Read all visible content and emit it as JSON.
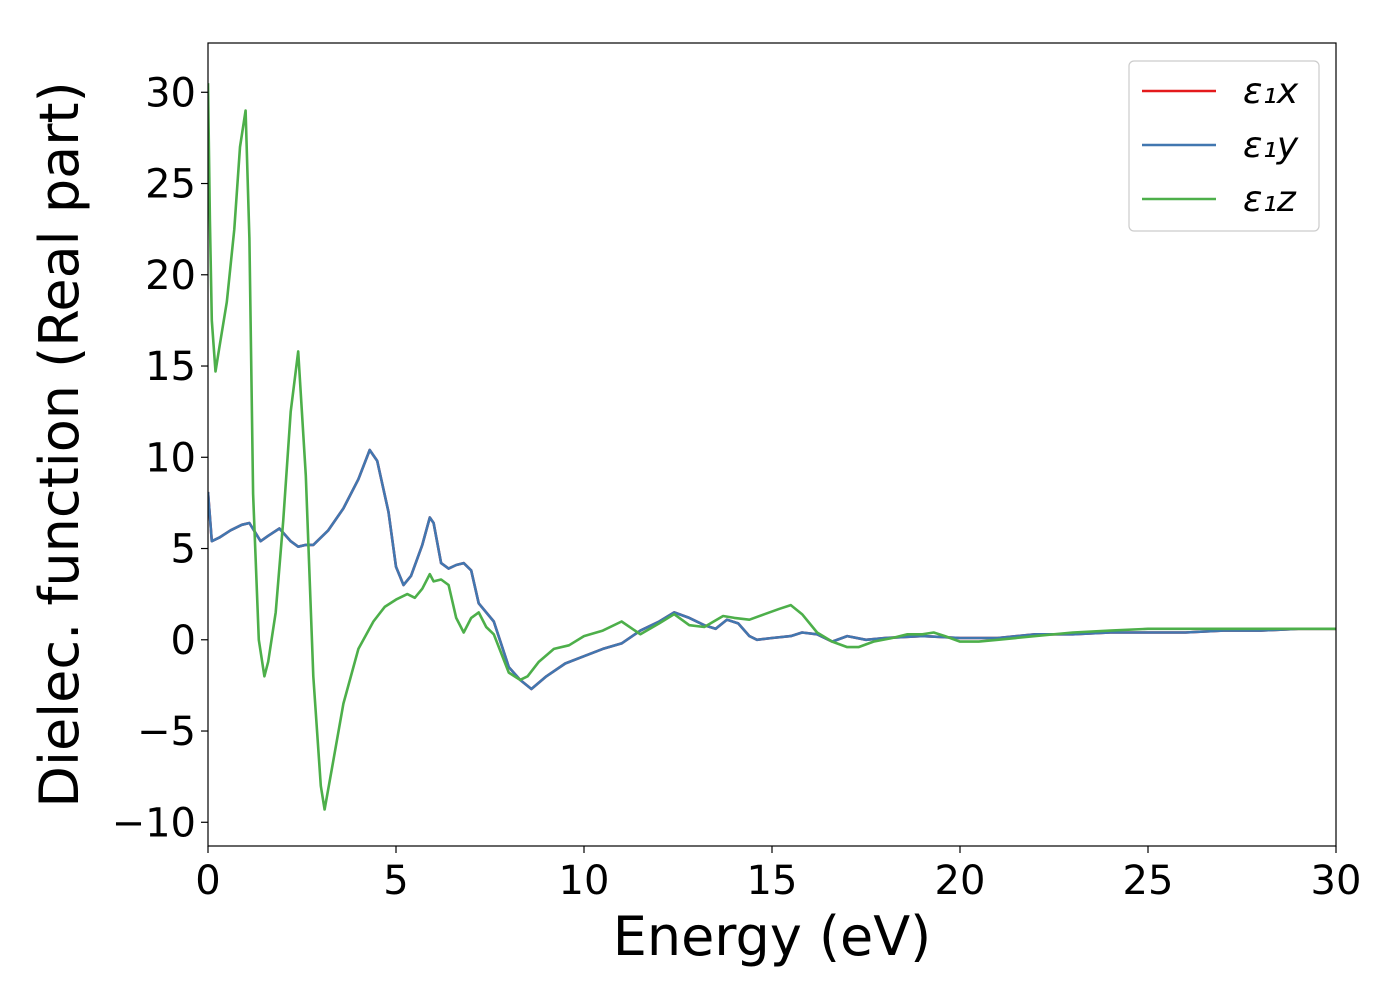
{
  "chart_data": {
    "type": "line",
    "title": "",
    "xlabel": "Energy (eV)",
    "ylabel": "Dielec. function (Real part)",
    "xlim": [
      0,
      30
    ],
    "ylim": [
      -11.3,
      32.7
    ],
    "xticks": [
      0,
      5,
      10,
      15,
      20,
      25,
      30
    ],
    "yticks": [
      -10,
      -5,
      0,
      5,
      10,
      15,
      20,
      25,
      30
    ],
    "xtick_labels": [
      "0",
      "5",
      "10",
      "15",
      "20",
      "25",
      "30"
    ],
    "ytick_labels": [
      "−10",
      "−5",
      "0",
      "5",
      "10",
      "15",
      "20",
      "25",
      "30"
    ],
    "grid": false,
    "legend_position": "top-right",
    "series": [
      {
        "name": "ε₁x",
        "color": "#e41a1c",
        "x": [
          0,
          0.1,
          0.3,
          0.6,
          0.9,
          1.1,
          1.4,
          1.6,
          1.9,
          2.2,
          2.4,
          2.6,
          2.8,
          3.2,
          3.6,
          4.0,
          4.3,
          4.5,
          4.8,
          5.0,
          5.2,
          5.4,
          5.7,
          5.9,
          6.0,
          6.2,
          6.4,
          6.6,
          6.8,
          7.0,
          7.2,
          7.6,
          8.0,
          8.3,
          8.6,
          9.0,
          9.5,
          10.0,
          10.5,
          11.0,
          11.5,
          12.0,
          12.4,
          12.8,
          13.2,
          13.5,
          13.8,
          14.1,
          14.4,
          14.6,
          15.0,
          15.5,
          15.8,
          16.2,
          16.6,
          17.0,
          17.5,
          18.0,
          19.0,
          20.0,
          21.0,
          22.0,
          23.0,
          24.0,
          25.0,
          26.0,
          27.0,
          28.0,
          29.0,
          30.0
        ],
        "y": [
          8.1,
          5.4,
          5.6,
          6.0,
          6.3,
          6.4,
          5.4,
          5.7,
          6.1,
          5.4,
          5.1,
          5.2,
          5.2,
          6.0,
          7.2,
          8.8,
          10.4,
          9.8,
          7.0,
          4.0,
          3.0,
          3.5,
          5.2,
          6.7,
          6.4,
          4.2,
          3.9,
          4.1,
          4.2,
          3.8,
          2.0,
          1.0,
          -1.5,
          -2.2,
          -2.7,
          -2.0,
          -1.3,
          -0.9,
          -0.5,
          -0.2,
          0.5,
          1.0,
          1.5,
          1.2,
          0.8,
          0.6,
          1.1,
          0.9,
          0.2,
          0.0,
          0.1,
          0.2,
          0.4,
          0.3,
          -0.1,
          0.2,
          0.0,
          0.1,
          0.2,
          0.1,
          0.1,
          0.3,
          0.3,
          0.4,
          0.4,
          0.4,
          0.5,
          0.5,
          0.6,
          0.6
        ]
      },
      {
        "name": "ε₁y",
        "color": "#4177b0",
        "x": [
          0,
          0.1,
          0.3,
          0.6,
          0.9,
          1.1,
          1.4,
          1.6,
          1.9,
          2.2,
          2.4,
          2.6,
          2.8,
          3.2,
          3.6,
          4.0,
          4.3,
          4.5,
          4.8,
          5.0,
          5.2,
          5.4,
          5.7,
          5.9,
          6.0,
          6.2,
          6.4,
          6.6,
          6.8,
          7.0,
          7.2,
          7.6,
          8.0,
          8.3,
          8.6,
          9.0,
          9.5,
          10.0,
          10.5,
          11.0,
          11.5,
          12.0,
          12.4,
          12.8,
          13.2,
          13.5,
          13.8,
          14.1,
          14.4,
          14.6,
          15.0,
          15.5,
          15.8,
          16.2,
          16.6,
          17.0,
          17.5,
          18.0,
          19.0,
          20.0,
          21.0,
          22.0,
          23.0,
          24.0,
          25.0,
          26.0,
          27.0,
          28.0,
          29.0,
          30.0
        ],
        "y": [
          8.1,
          5.4,
          5.6,
          6.0,
          6.3,
          6.4,
          5.4,
          5.7,
          6.1,
          5.4,
          5.1,
          5.2,
          5.2,
          6.0,
          7.2,
          8.8,
          10.4,
          9.8,
          7.0,
          4.0,
          3.0,
          3.5,
          5.2,
          6.7,
          6.4,
          4.2,
          3.9,
          4.1,
          4.2,
          3.8,
          2.0,
          1.0,
          -1.5,
          -2.2,
          -2.7,
          -2.0,
          -1.3,
          -0.9,
          -0.5,
          -0.2,
          0.5,
          1.0,
          1.5,
          1.2,
          0.8,
          0.6,
          1.1,
          0.9,
          0.2,
          0.0,
          0.1,
          0.2,
          0.4,
          0.3,
          -0.1,
          0.2,
          0.0,
          0.1,
          0.2,
          0.1,
          0.1,
          0.3,
          0.3,
          0.4,
          0.4,
          0.4,
          0.5,
          0.5,
          0.6,
          0.6
        ]
      },
      {
        "name": "ε₁z",
        "color": "#4daf4a",
        "x": [
          0,
          0.05,
          0.1,
          0.2,
          0.3,
          0.5,
          0.7,
          0.85,
          1.0,
          1.1,
          1.2,
          1.35,
          1.5,
          1.6,
          1.8,
          2.0,
          2.2,
          2.4,
          2.6,
          2.8,
          3.0,
          3.1,
          3.3,
          3.6,
          4.0,
          4.4,
          4.7,
          5.0,
          5.3,
          5.5,
          5.7,
          5.9,
          6.0,
          6.2,
          6.4,
          6.6,
          6.8,
          7.0,
          7.2,
          7.4,
          7.6,
          8.0,
          8.3,
          8.5,
          8.8,
          9.2,
          9.6,
          10.0,
          10.5,
          11.0,
          11.5,
          12.0,
          12.4,
          12.8,
          13.2,
          13.7,
          14.0,
          14.4,
          14.8,
          15.2,
          15.5,
          15.8,
          16.2,
          16.6,
          17.0,
          17.3,
          17.7,
          18.2,
          18.6,
          19.0,
          19.3,
          19.6,
          20.0,
          20.5,
          21.0,
          22.0,
          23.0,
          24.0,
          25.0,
          26.0,
          27.0,
          28.0,
          29.0,
          30.0
        ],
        "y": [
          30.5,
          23.0,
          17.5,
          14.7,
          16.0,
          18.5,
          22.5,
          27.0,
          29.0,
          22.0,
          8.0,
          0.0,
          -2.0,
          -1.2,
          1.5,
          6.5,
          12.5,
          15.8,
          9.0,
          -2.0,
          -8.0,
          -9.3,
          -7.0,
          -3.5,
          -0.5,
          1.0,
          1.8,
          2.2,
          2.5,
          2.3,
          2.8,
          3.6,
          3.2,
          3.3,
          3.0,
          1.2,
          0.4,
          1.2,
          1.5,
          0.7,
          0.3,
          -1.8,
          -2.2,
          -2.0,
          -1.2,
          -0.5,
          -0.3,
          0.2,
          0.5,
          1.0,
          0.3,
          0.9,
          1.4,
          0.8,
          0.7,
          1.3,
          1.2,
          1.1,
          1.4,
          1.7,
          1.9,
          1.4,
          0.4,
          -0.1,
          -0.4,
          -0.4,
          -0.1,
          0.1,
          0.3,
          0.3,
          0.4,
          0.2,
          -0.1,
          -0.1,
          0.0,
          0.2,
          0.4,
          0.5,
          0.6,
          0.6,
          0.6,
          0.6,
          0.6,
          0.6
        ]
      }
    ]
  }
}
